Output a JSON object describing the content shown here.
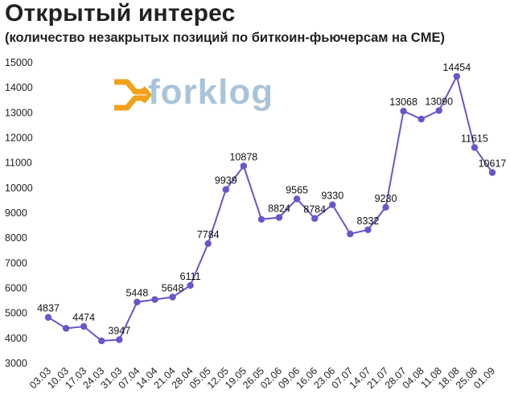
{
  "chart_data": {
    "type": "line",
    "title": "Открытый интерес",
    "subtitle": "(количество незакрытых позиций по биткоин-фьючерсам на CME)",
    "categories": [
      "03.03",
      "10.03",
      "17.03",
      "24.03",
      "31.03",
      "07.04",
      "14.04",
      "21.04",
      "28.04",
      "05.05",
      "12.05",
      "19.05",
      "26.05",
      "02.06",
      "09.06",
      "16.06",
      "23.06",
      "07.07",
      "14.07",
      "21.07",
      "28.07",
      "04.08",
      "11.08",
      "18.08",
      "25.08",
      "01.09"
    ],
    "values": [
      4837,
      4400,
      4474,
      3900,
      3947,
      5448,
      5550,
      5648,
      6111,
      7784,
      9939,
      10878,
      8750,
      8824,
      9565,
      8784,
      9330,
      8170,
      8332,
      9230,
      13068,
      12750,
      13090,
      14454,
      11615,
      10617
    ],
    "data_labels": [
      "4837",
      "",
      "4474",
      "",
      "3947",
      "5448",
      "",
      "5648",
      "6111",
      "7784",
      "9939",
      "10878",
      "",
      "8824",
      "9565",
      "8784",
      "9330",
      "",
      "8332",
      "9230",
      "13068",
      "",
      "13090",
      "14454",
      "11615",
      "10617"
    ],
    "y_ticks": [
      "3000",
      "4000",
      "5000",
      "6000",
      "7000",
      "8000",
      "9000",
      "10000",
      "11000",
      "12000",
      "13000",
      "14000",
      "15000"
    ],
    "ylim": [
      3000,
      15000
    ],
    "xlabel": "",
    "ylabel": "",
    "grid": false,
    "legend": "none",
    "colors": {
      "line": "#6a55c9",
      "marker": "#6a55c9",
      "logo_orange": "#f0a21b",
      "logo_blue": "#a9c4d8"
    }
  },
  "logo": {
    "text": "forklog"
  }
}
